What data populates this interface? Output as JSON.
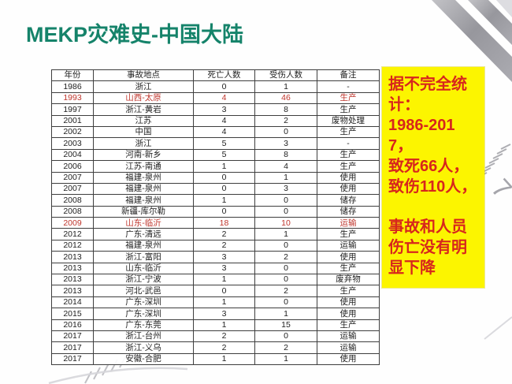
{
  "slide_title": "MEKP灾难史-中国大陆",
  "colors": {
    "title_green": "#15836a",
    "table_highlight_red": "#bf352c",
    "note_text_red": "#d7261d",
    "note_background_yellow": "#fcf500",
    "table_border": "#3e3e3e"
  },
  "table": {
    "columns": [
      "年份",
      "事故地点",
      "死亡人数",
      "受伤人数",
      "备注"
    ],
    "rows": [
      {
        "year": "1986",
        "location": "浙江",
        "deaths": "0",
        "injuries": "1",
        "note": "-",
        "highlight": false
      },
      {
        "year": "1993",
        "location": "山西-太原",
        "deaths": "4",
        "injuries": "46",
        "note": "生产",
        "highlight": true
      },
      {
        "year": "1997",
        "location": "浙江-黄岩",
        "deaths": "3",
        "injuries": "8",
        "note": "生产",
        "highlight": false
      },
      {
        "year": "2001",
        "location": "江苏",
        "deaths": "4",
        "injuries": "2",
        "note": "废物处理",
        "highlight": false
      },
      {
        "year": "2002",
        "location": "中国",
        "deaths": "4",
        "injuries": "0",
        "note": "生产",
        "highlight": false
      },
      {
        "year": "2003",
        "location": "浙江",
        "deaths": "5",
        "injuries": "3",
        "note": "-",
        "highlight": false
      },
      {
        "year": "2004",
        "location": "河南-新乡",
        "deaths": "5",
        "injuries": "8",
        "note": "生产",
        "highlight": false
      },
      {
        "year": "2006",
        "location": "江苏-南通",
        "deaths": "1",
        "injuries": "4",
        "note": "生产",
        "highlight": false
      },
      {
        "year": "2007",
        "location": "福建-泉州",
        "deaths": "0",
        "injuries": "1",
        "note": "使用",
        "highlight": false
      },
      {
        "year": "2007",
        "location": "福建-泉州",
        "deaths": "0",
        "injuries": "3",
        "note": "使用",
        "highlight": false
      },
      {
        "year": "2008",
        "location": "福建-泉州",
        "deaths": "1",
        "injuries": "0",
        "note": "储存",
        "highlight": false
      },
      {
        "year": "2008",
        "location": "新疆-库尔勒",
        "deaths": "0",
        "injuries": "0",
        "note": "储存",
        "highlight": false
      },
      {
        "year": "2009",
        "location": "山东-临沂",
        "deaths": "18",
        "injuries": "10",
        "note": "运输",
        "highlight": true
      },
      {
        "year": "2012",
        "location": "广东-清远",
        "deaths": "2",
        "injuries": "1",
        "note": "生产",
        "highlight": false
      },
      {
        "year": "2012",
        "location": "福建-泉州",
        "deaths": "2",
        "injuries": "0",
        "note": "运输",
        "highlight": false
      },
      {
        "year": "2013",
        "location": "浙江-富阳",
        "deaths": "3",
        "injuries": "2",
        "note": "使用",
        "highlight": false
      },
      {
        "year": "2013",
        "location": "山东-临沂",
        "deaths": "3",
        "injuries": "0",
        "note": "生产",
        "highlight": false
      },
      {
        "year": "2013",
        "location": "浙江-宁波",
        "deaths": "1",
        "injuries": "0",
        "note": "废弃物",
        "highlight": false
      },
      {
        "year": "2013",
        "location": "河北-武邑",
        "deaths": "0",
        "injuries": "2",
        "note": "生产",
        "highlight": false
      },
      {
        "year": "2014",
        "location": "广东-深圳",
        "deaths": "1",
        "injuries": "0",
        "note": "使用",
        "highlight": false
      },
      {
        "year": "2015",
        "location": "广东-深圳",
        "deaths": "3",
        "injuries": "1",
        "note": "使用",
        "highlight": false
      },
      {
        "year": "2016",
        "location": "广东-东莞",
        "deaths": "1",
        "injuries": "15",
        "note": "生产",
        "highlight": false
      },
      {
        "year": "2017",
        "location": "浙江-台州",
        "deaths": "2",
        "injuries": "0",
        "note": "运输",
        "highlight": false
      },
      {
        "year": "2017",
        "location": "浙江-义乌",
        "deaths": "2",
        "injuries": "2",
        "note": "运输",
        "highlight": false
      },
      {
        "year": "2017",
        "location": "安徽-合肥",
        "deaths": "1",
        "injuries": "1",
        "note": "使用",
        "highlight": false
      }
    ]
  },
  "note_box": {
    "paragraphs": [
      "据不完全统计：",
      "1986-2017，",
      "致死66人，",
      "致伤110人，",
      "事故和人员伤亡没有明显下降"
    ]
  },
  "decor": {
    "ruler_digit": "7"
  }
}
